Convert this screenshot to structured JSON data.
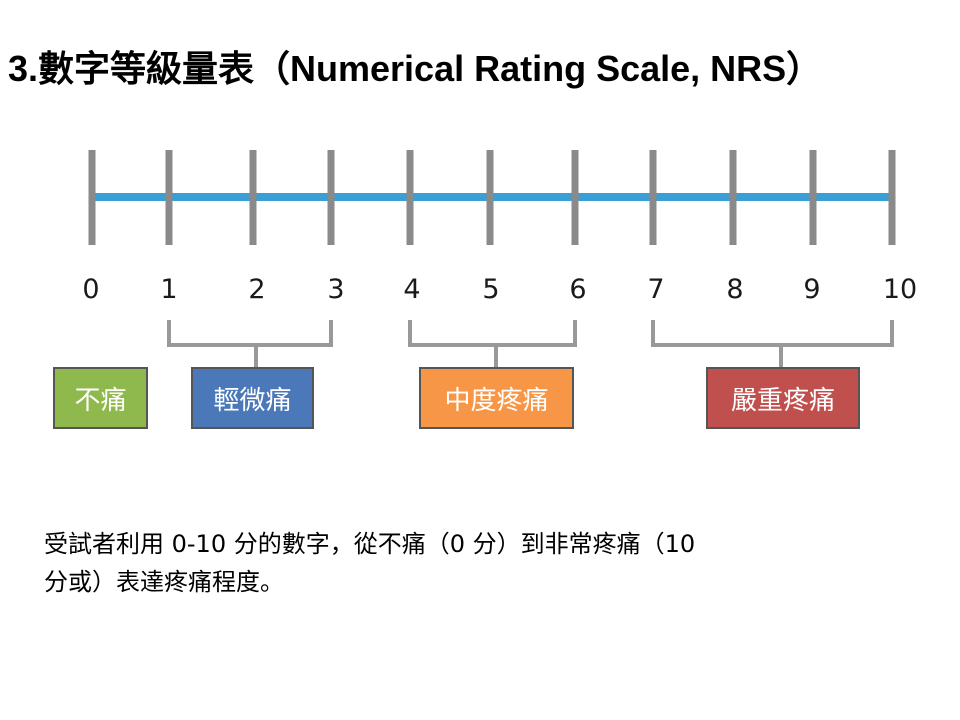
{
  "title": "3.數字等級量表（Numerical Rating Scale, NRS）",
  "scale": {
    "numbers": [
      "0",
      "1",
      "2",
      "3",
      "4",
      "5",
      "6",
      "7",
      "8",
      "9",
      "10"
    ],
    "colors": {
      "line": "#3a9fd4",
      "tick": "#8a8a8a",
      "bracket": "#999999"
    }
  },
  "categories": [
    {
      "label": "不痛",
      "color": "#8fb84d",
      "range": [
        0,
        0
      ]
    },
    {
      "label": "輕微痛",
      "color": "#4a78b8",
      "range": [
        1,
        3
      ]
    },
    {
      "label": "中度疼痛",
      "color": "#f79646",
      "range": [
        4,
        6
      ]
    },
    {
      "label": "嚴重疼痛",
      "color": "#c0504d",
      "range": [
        7,
        10
      ]
    }
  ],
  "description": {
    "line1": "受試者利用 0-10 分的數字，從不痛（0 分）到非常疼痛（10",
    "line2": "分或）表達疼痛程度。"
  }
}
